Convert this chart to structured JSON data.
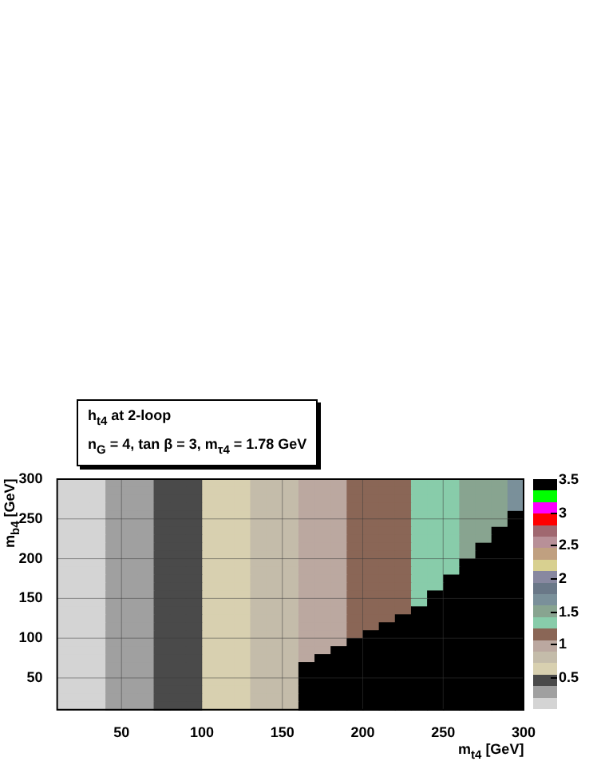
{
  "chart_data": {
    "type": "heatmap",
    "title": "h$_{t4}$ at 2-loop",
    "subtitle": "n$_{G}$ = 4, tan β = 3, m$_{τ4}$ = 1.78 GeV",
    "xlabel": "m$_{t4}$ [GeV]",
    "ylabel": "m$_{b4}$ [GeV]",
    "x": [
      15,
      25,
      35,
      45,
      55,
      65,
      75,
      85,
      95,
      105,
      115,
      125,
      135,
      145,
      155,
      165,
      175,
      185,
      195,
      205,
      215,
      225,
      235,
      245,
      255,
      265,
      275,
      285,
      295
    ],
    "y": [
      295,
      285,
      275,
      265,
      255,
      245,
      235,
      225,
      215,
      205,
      195,
      185,
      175,
      165,
      155,
      145,
      135,
      125,
      115,
      105,
      95,
      85,
      75,
      65,
      55,
      45,
      35,
      25,
      15
    ],
    "xlim": [
      10,
      300
    ],
    "xticks": [
      50,
      100,
      150,
      200,
      250,
      300
    ],
    "ylim": [
      10,
      300
    ],
    "yticks": [
      50,
      100,
      150,
      200,
      250,
      300
    ],
    "grid": true,
    "clim": [
      0,
      3.5
    ],
    "cticks": [
      0.5,
      1,
      1.5,
      2,
      2.5,
      3,
      3.5
    ],
    "colors": [
      "#d4d4d4",
      "#a0a0a0",
      "#4a4a4a",
      "#d8d0b0",
      "#c4bcaa",
      "#bba8a0",
      "#8a6656",
      "#88ccaa",
      "#88a490",
      "#7a909a",
      "#6a7888",
      "#8888a0",
      "#d8d090",
      "#c0a080",
      "#b89098",
      "#a06870",
      "#ff0000",
      "#ff00ff",
      "#00ff00",
      "#000000"
    ],
    "cells": [
      [
        0.09,
        0.09,
        0.09,
        0.26,
        0.26,
        0.26,
        0.44,
        0.44,
        0.44,
        0.61,
        0.61,
        0.61,
        0.79,
        0.79,
        0.79,
        0.96,
        0.96,
        0.96,
        1.14,
        1.14,
        1.14,
        1.14,
        1.31,
        1.31,
        1.31,
        1.49,
        1.49,
        1.49,
        1.66
      ],
      [
        0.09,
        0.09,
        0.09,
        0.26,
        0.26,
        0.26,
        0.44,
        0.44,
        0.44,
        0.61,
        0.61,
        0.61,
        0.79,
        0.79,
        0.79,
        0.96,
        0.96,
        0.96,
        1.14,
        1.14,
        1.14,
        1.14,
        1.31,
        1.31,
        1.31,
        1.49,
        1.49,
        1.49,
        1.66
      ],
      [
        0.09,
        0.09,
        0.09,
        0.26,
        0.26,
        0.26,
        0.44,
        0.44,
        0.44,
        0.61,
        0.61,
        0.61,
        0.79,
        0.79,
        0.79,
        0.96,
        0.96,
        0.96,
        1.14,
        1.14,
        1.14,
        1.14,
        1.31,
        1.31,
        1.31,
        1.49,
        1.49,
        1.49,
        1.66
      ],
      [
        0.09,
        0.09,
        0.09,
        0.26,
        0.26,
        0.26,
        0.44,
        0.44,
        0.44,
        0.61,
        0.61,
        0.61,
        0.79,
        0.79,
        0.79,
        0.96,
        0.96,
        0.96,
        1.14,
        1.14,
        1.14,
        1.14,
        1.31,
        1.31,
        1.31,
        1.49,
        1.49,
        1.49,
        1.66
      ],
      [
        0.09,
        0.09,
        0.09,
        0.26,
        0.26,
        0.26,
        0.44,
        0.44,
        0.44,
        0.61,
        0.61,
        0.61,
        0.79,
        0.79,
        0.79,
        0.96,
        0.96,
        0.96,
        1.14,
        1.14,
        1.14,
        1.14,
        1.31,
        1.31,
        1.31,
        1.49,
        1.49,
        1.49,
        3.4
      ],
      [
        0.09,
        0.09,
        0.09,
        0.26,
        0.26,
        0.26,
        0.44,
        0.44,
        0.44,
        0.61,
        0.61,
        0.61,
        0.79,
        0.79,
        0.79,
        0.96,
        0.96,
        0.96,
        1.14,
        1.14,
        1.14,
        1.14,
        1.31,
        1.31,
        1.31,
        1.49,
        1.49,
        1.49,
        3.4
      ],
      [
        0.09,
        0.09,
        0.09,
        0.26,
        0.26,
        0.26,
        0.44,
        0.44,
        0.44,
        0.61,
        0.61,
        0.61,
        0.79,
        0.79,
        0.79,
        0.96,
        0.96,
        0.96,
        1.14,
        1.14,
        1.14,
        1.14,
        1.31,
        1.31,
        1.31,
        1.49,
        1.49,
        3.4,
        3.4
      ],
      [
        0.09,
        0.09,
        0.09,
        0.26,
        0.26,
        0.26,
        0.44,
        0.44,
        0.44,
        0.61,
        0.61,
        0.61,
        0.79,
        0.79,
        0.79,
        0.96,
        0.96,
        0.96,
        1.14,
        1.14,
        1.14,
        1.14,
        1.31,
        1.31,
        1.31,
        1.49,
        1.49,
        3.4,
        3.4
      ],
      [
        0.09,
        0.09,
        0.09,
        0.26,
        0.26,
        0.26,
        0.44,
        0.44,
        0.44,
        0.61,
        0.61,
        0.61,
        0.79,
        0.79,
        0.79,
        0.96,
        0.96,
        0.96,
        1.14,
        1.14,
        1.14,
        1.14,
        1.31,
        1.31,
        1.31,
        1.49,
        3.4,
        3.4,
        3.4
      ],
      [
        0.09,
        0.09,
        0.09,
        0.26,
        0.26,
        0.26,
        0.44,
        0.44,
        0.44,
        0.61,
        0.61,
        0.61,
        0.79,
        0.79,
        0.79,
        0.96,
        0.96,
        0.96,
        1.14,
        1.14,
        1.14,
        1.14,
        1.31,
        1.31,
        1.31,
        1.49,
        3.4,
        3.4,
        3.4
      ],
      [
        0.09,
        0.09,
        0.09,
        0.26,
        0.26,
        0.26,
        0.44,
        0.44,
        0.44,
        0.61,
        0.61,
        0.61,
        0.79,
        0.79,
        0.79,
        0.96,
        0.96,
        0.96,
        1.14,
        1.14,
        1.14,
        1.14,
        1.31,
        1.31,
        1.31,
        3.4,
        3.4,
        3.4,
        3.4
      ],
      [
        0.09,
        0.09,
        0.09,
        0.26,
        0.26,
        0.26,
        0.44,
        0.44,
        0.44,
        0.61,
        0.61,
        0.61,
        0.79,
        0.79,
        0.79,
        0.96,
        0.96,
        0.96,
        1.14,
        1.14,
        1.14,
        1.14,
        1.31,
        1.31,
        1.31,
        3.4,
        3.4,
        3.4,
        3.4
      ],
      [
        0.09,
        0.09,
        0.09,
        0.26,
        0.26,
        0.26,
        0.44,
        0.44,
        0.44,
        0.61,
        0.61,
        0.61,
        0.79,
        0.79,
        0.79,
        0.96,
        0.96,
        0.96,
        1.14,
        1.14,
        1.14,
        1.14,
        1.31,
        1.31,
        3.4,
        3.4,
        3.4,
        3.4,
        3.4
      ],
      [
        0.09,
        0.09,
        0.09,
        0.26,
        0.26,
        0.26,
        0.44,
        0.44,
        0.44,
        0.61,
        0.61,
        0.61,
        0.79,
        0.79,
        0.79,
        0.96,
        0.96,
        0.96,
        1.14,
        1.14,
        1.14,
        1.14,
        1.31,
        1.31,
        3.4,
        3.4,
        3.4,
        3.4,
        3.4
      ],
      [
        0.09,
        0.09,
        0.09,
        0.26,
        0.26,
        0.26,
        0.44,
        0.44,
        0.44,
        0.61,
        0.61,
        0.61,
        0.79,
        0.79,
        0.79,
        0.96,
        0.96,
        0.96,
        1.14,
        1.14,
        1.14,
        1.14,
        1.31,
        3.4,
        3.4,
        3.4,
        3.4,
        3.4,
        3.4
      ],
      [
        0.09,
        0.09,
        0.09,
        0.26,
        0.26,
        0.26,
        0.44,
        0.44,
        0.44,
        0.61,
        0.61,
        0.61,
        0.79,
        0.79,
        0.79,
        0.96,
        0.96,
        0.96,
        1.14,
        1.14,
        1.14,
        1.14,
        1.31,
        3.4,
        3.4,
        3.4,
        3.4,
        3.4,
        3.4
      ],
      [
        0.09,
        0.09,
        0.09,
        0.26,
        0.26,
        0.26,
        0.44,
        0.44,
        0.44,
        0.61,
        0.61,
        0.61,
        0.79,
        0.79,
        0.79,
        0.96,
        0.96,
        0.96,
        1.14,
        1.14,
        1.14,
        1.14,
        3.4,
        3.4,
        3.4,
        3.4,
        3.4,
        3.4,
        3.4
      ],
      [
        0.09,
        0.09,
        0.09,
        0.26,
        0.26,
        0.26,
        0.44,
        0.44,
        0.44,
        0.61,
        0.61,
        0.61,
        0.79,
        0.79,
        0.79,
        0.96,
        0.96,
        0.96,
        1.14,
        1.14,
        1.14,
        3.4,
        3.4,
        3.4,
        3.4,
        3.4,
        3.4,
        3.4,
        3.4
      ],
      [
        0.09,
        0.09,
        0.09,
        0.26,
        0.26,
        0.26,
        0.44,
        0.44,
        0.44,
        0.61,
        0.61,
        0.61,
        0.79,
        0.79,
        0.79,
        0.96,
        0.96,
        0.96,
        1.14,
        1.14,
        3.4,
        3.4,
        3.4,
        3.4,
        3.4,
        3.4,
        3.4,
        3.4,
        3.4
      ],
      [
        0.09,
        0.09,
        0.09,
        0.26,
        0.26,
        0.26,
        0.44,
        0.44,
        0.44,
        0.61,
        0.61,
        0.61,
        0.79,
        0.79,
        0.79,
        0.96,
        0.96,
        0.96,
        1.14,
        3.4,
        3.4,
        3.4,
        3.4,
        3.4,
        3.4,
        3.4,
        3.4,
        3.4,
        3.4
      ],
      [
        0.09,
        0.09,
        0.09,
        0.26,
        0.26,
        0.26,
        0.44,
        0.44,
        0.44,
        0.61,
        0.61,
        0.61,
        0.79,
        0.79,
        0.79,
        0.96,
        0.96,
        0.96,
        3.4,
        3.4,
        3.4,
        3.4,
        3.4,
        3.4,
        3.4,
        3.4,
        3.4,
        3.4,
        3.4
      ],
      [
        0.09,
        0.09,
        0.09,
        0.26,
        0.26,
        0.26,
        0.44,
        0.44,
        0.44,
        0.61,
        0.61,
        0.61,
        0.79,
        0.79,
        0.79,
        0.96,
        0.96,
        3.4,
        3.4,
        3.4,
        3.4,
        3.4,
        3.4,
        3.4,
        3.4,
        3.4,
        3.4,
        3.4,
        3.4
      ],
      [
        0.09,
        0.09,
        0.09,
        0.26,
        0.26,
        0.26,
        0.44,
        0.44,
        0.44,
        0.61,
        0.61,
        0.61,
        0.79,
        0.79,
        0.79,
        0.96,
        3.4,
        3.4,
        3.4,
        3.4,
        3.4,
        3.4,
        3.4,
        3.4,
        3.4,
        3.4,
        3.4,
        3.4,
        3.4
      ],
      [
        0.09,
        0.09,
        0.09,
        0.26,
        0.26,
        0.26,
        0.44,
        0.44,
        0.44,
        0.61,
        0.61,
        0.61,
        0.79,
        0.79,
        0.79,
        3.4,
        3.4,
        3.4,
        3.4,
        3.4,
        3.4,
        3.4,
        3.4,
        3.4,
        3.4,
        3.4,
        3.4,
        3.4,
        3.4
      ],
      [
        0.09,
        0.09,
        0.09,
        0.26,
        0.26,
        0.26,
        0.44,
        0.44,
        0.44,
        0.61,
        0.61,
        0.61,
        0.79,
        0.79,
        0.79,
        3.4,
        3.4,
        3.4,
        3.4,
        3.4,
        3.4,
        3.4,
        3.4,
        3.4,
        3.4,
        3.4,
        3.4,
        3.4,
        3.4
      ],
      [
        0.09,
        0.09,
        0.09,
        0.26,
        0.26,
        0.26,
        0.44,
        0.44,
        0.44,
        0.61,
        0.61,
        0.61,
        0.79,
        0.79,
        0.79,
        3.4,
        3.4,
        3.4,
        3.4,
        3.4,
        3.4,
        3.4,
        3.4,
        3.4,
        3.4,
        3.4,
        3.4,
        3.4,
        3.4
      ],
      [
        0.09,
        0.09,
        0.09,
        0.26,
        0.26,
        0.26,
        0.44,
        0.44,
        0.44,
        0.61,
        0.61,
        0.61,
        0.79,
        0.79,
        0.79,
        3.4,
        3.4,
        3.4,
        3.4,
        3.4,
        3.4,
        3.4,
        3.4,
        3.4,
        3.4,
        3.4,
        3.4,
        3.4,
        3.4
      ],
      [
        0.09,
        0.09,
        0.09,
        0.26,
        0.26,
        0.26,
        0.44,
        0.44,
        0.44,
        0.61,
        0.61,
        0.61,
        0.79,
        0.79,
        0.79,
        3.4,
        3.4,
        3.4,
        3.4,
        3.4,
        3.4,
        3.4,
        3.4,
        3.4,
        3.4,
        3.4,
        3.4,
        3.4,
        3.4
      ],
      [
        0.09,
        0.09,
        0.09,
        0.26,
        0.26,
        0.26,
        0.44,
        0.44,
        0.44,
        0.61,
        0.61,
        0.61,
        0.79,
        0.79,
        0.79,
        3.4,
        3.4,
        3.4,
        3.4,
        3.4,
        3.4,
        3.4,
        3.4,
        3.4,
        3.4,
        3.4,
        3.4,
        3.4,
        3.4
      ]
    ]
  }
}
